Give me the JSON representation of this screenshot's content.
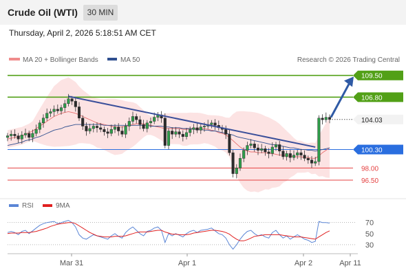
{
  "header": {
    "title": "Crude Oil (WTI)",
    "interval": "30 MIN",
    "datetime": "Thursday, April 2, 2026 5:18:51 AM CET"
  },
  "chart_data": [
    {
      "type": "candlestick",
      "title": "",
      "legend": [
        {
          "label": "MA 20 + Bollinger Bands",
          "color": "#f08c8c"
        },
        {
          "label": "MA 50",
          "color": "#2f4f8f"
        }
      ],
      "watermark": "Research © 2026 Trading Central",
      "y_range": [
        95.3,
        110.5
      ],
      "x_labels": [
        "Mar 31",
        "Apr 1",
        "Apr 2",
        "Apr 11"
      ],
      "key_levels": [
        {
          "value": 109.5,
          "label": "109.50",
          "kind": "resistance",
          "color": "#52a017"
        },
        {
          "value": 106.8,
          "label": "106.80",
          "kind": "resistance",
          "color": "#52a017"
        },
        {
          "value": 104.03,
          "label": "104.03",
          "kind": "last",
          "color": "#333333"
        },
        {
          "value": 100.3,
          "label": "100.30",
          "kind": "pivot",
          "color": "#2a6edf"
        },
        {
          "value": 98.0,
          "label": "98.00",
          "kind": "support",
          "color": "#e54040"
        },
        {
          "value": 96.5,
          "label": "96.50",
          "kind": "support",
          "color": "#e54040"
        }
      ],
      "closes": [
        102.0,
        102.2,
        102.0,
        101.6,
        102.1,
        102.3,
        101.8,
        102.3,
        102.8,
        103.6,
        104.2,
        104.8,
        105.0,
        105.3,
        105.1,
        105.5,
        106.0,
        106.6,
        106.3,
        105.6,
        104.2,
        103.2,
        102.6,
        102.9,
        103.2,
        103.0,
        102.8,
        102.5,
        102.3,
        102.8,
        103.1,
        102.6,
        102.2,
        103.2,
        103.8,
        104.4,
        104.0,
        103.4,
        102.9,
        103.6,
        103.8,
        104.3,
        104.6,
        104.2,
        100.8,
        102.6,
        102.2,
        102.5,
        102.2,
        101.9,
        102.4,
        102.8,
        103.0,
        102.7,
        103.1,
        103.2,
        103.4,
        103.6,
        103.3,
        103.0,
        102.8,
        102.2,
        99.9,
        97.3,
        98.0,
        99.2,
        100.2,
        100.8,
        101.0,
        100.5,
        100.2,
        100.4,
        100.0,
        99.8,
        100.6,
        100.9,
        100.1,
        99.4,
        99.8,
        99.3,
        99.6,
        99.9,
        99.6,
        99.2,
        99.0,
        98.6,
        98.8,
        104.2,
        104.0,
        104.3,
        104.03
      ],
      "ma20": [
        101.6,
        101.7,
        101.8,
        101.9,
        102.0,
        102.2,
        102.4,
        102.6,
        102.9,
        103.2,
        103.5,
        103.8,
        104.1,
        104.4,
        104.6,
        104.8,
        104.9,
        105.0,
        104.9,
        104.8,
        104.6,
        104.4,
        104.2,
        104.0,
        103.8,
        103.6,
        103.5,
        103.4,
        103.3,
        103.2,
        103.1,
        103.1,
        103.1,
        103.2,
        103.3,
        103.4,
        103.5,
        103.5,
        103.5,
        103.4,
        103.3,
        103.2,
        103.1,
        103.0,
        102.9,
        102.9,
        102.9,
        102.9,
        102.9,
        102.8,
        102.8,
        102.9,
        102.9,
        102.9,
        102.9,
        102.9,
        102.8,
        102.7,
        102.6,
        102.4,
        102.3,
        102.1,
        101.8,
        101.4,
        101.0,
        100.6,
        100.3,
        100.1,
        100.0,
        100.0,
        99.9,
        99.9,
        99.9,
        99.8,
        99.8,
        99.7,
        99.6,
        99.6,
        99.5,
        99.5,
        99.4,
        99.4,
        99.4,
        99.3,
        99.3,
        99.2,
        99.2,
        99.5,
        99.9,
        100.2,
        100.5
      ],
      "ma50": [
        100.8,
        100.9,
        101.0,
        101.1,
        101.2,
        101.4,
        101.5,
        101.6,
        101.8,
        101.9,
        102.1,
        102.3,
        102.5,
        102.7,
        102.8,
        102.9,
        103.1,
        103.2,
        103.3,
        103.4,
        103.4,
        103.4,
        103.4,
        103.4,
        103.4,
        103.4,
        103.4,
        103.3,
        103.3,
        103.3,
        103.3,
        103.3,
        103.3,
        103.3,
        103.3,
        103.3,
        103.3,
        103.3,
        103.3,
        103.3,
        103.2,
        103.2,
        103.2,
        103.2,
        103.1,
        103.1,
        103.0,
        103.0,
        103.0,
        102.9,
        102.9,
        102.9,
        102.8,
        102.8,
        102.8,
        102.7,
        102.7,
        102.6,
        102.6,
        102.5,
        102.4,
        102.3,
        102.2,
        102.1,
        101.9,
        101.8,
        101.7,
        101.6,
        101.5,
        101.4,
        101.3,
        101.2,
        101.1,
        101.0,
        100.9,
        100.9,
        100.8,
        100.7,
        100.6,
        100.5,
        100.5,
        100.4,
        100.3,
        100.3,
        100.2,
        100.2,
        100.1,
        100.2,
        100.3,
        100.4,
        100.5
      ]
    },
    {
      "type": "line",
      "title": "",
      "legend": [
        {
          "label": "RSI",
          "color": "#5b86d6"
        },
        {
          "label": "9MA",
          "color": "#e02020"
        }
      ],
      "y_ticks": [
        70,
        50,
        30
      ],
      "y_range": [
        20,
        82
      ],
      "rsi": [
        52,
        54,
        52,
        48,
        54,
        56,
        50,
        55,
        60,
        65,
        68,
        70,
        71,
        72,
        68,
        70,
        72,
        74,
        70,
        62,
        48,
        42,
        40,
        44,
        48,
        46,
        44,
        42,
        40,
        46,
        50,
        45,
        42,
        52,
        58,
        62,
        56,
        50,
        46,
        54,
        56,
        60,
        62,
        56,
        34,
        50,
        46,
        50,
        47,
        44,
        50,
        54,
        56,
        52,
        56,
        57,
        58,
        60,
        55,
        50,
        48,
        42,
        30,
        22,
        30,
        40,
        48,
        54,
        56,
        50,
        46,
        48,
        44,
        42,
        52,
        56,
        48,
        42,
        46,
        40,
        44,
        48,
        44,
        40,
        38,
        34,
        36,
        72,
        70,
        70,
        69
      ],
      "ma9": [
        50,
        51,
        51,
        51,
        52,
        52,
        52,
        53,
        54,
        56,
        58,
        60,
        63,
        65,
        67,
        68,
        69,
        70,
        70,
        68,
        64,
        60,
        56,
        52,
        49,
        46,
        45,
        44,
        44,
        44,
        45,
        45,
        45,
        46,
        48,
        50,
        52,
        53,
        53,
        53,
        54,
        55,
        56,
        56,
        53,
        51,
        49,
        49,
        48,
        48,
        48,
        49,
        51,
        52,
        53,
        54,
        55,
        56,
        56,
        55,
        54,
        52,
        49,
        44,
        40,
        37,
        37,
        39,
        42,
        45,
        46,
        47,
        48,
        48,
        48,
        48,
        48,
        47,
        46,
        45,
        44,
        44,
        44,
        43,
        42,
        41,
        40,
        44,
        48,
        52,
        55
      ]
    }
  ]
}
